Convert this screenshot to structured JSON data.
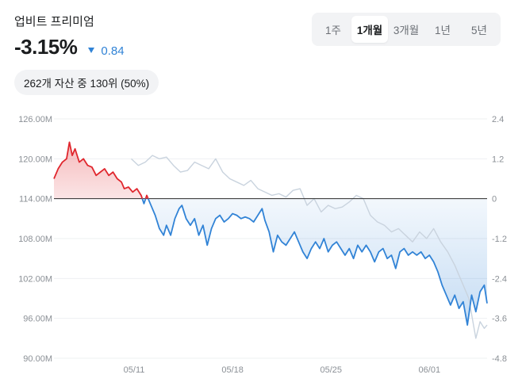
{
  "header": {
    "title": "업비트 프리미엄",
    "return_value": "-3.15%",
    "change_value": "0.84",
    "change_direction": "down",
    "rank_text": "262개 자산 중 130위 (50%)"
  },
  "period_tabs": [
    {
      "label": "1주",
      "active": false
    },
    {
      "label": "1개월",
      "active": true
    },
    {
      "label": "3개월",
      "active": false
    },
    {
      "label": "1년",
      "active": false
    },
    {
      "label": "5년",
      "active": false
    }
  ],
  "colors": {
    "up": "#e0262d",
    "down": "#3183d6",
    "benchmark": "#c9d3de",
    "baseline": "#2b2b2b",
    "grid": "#eef0f2"
  },
  "chart_data": {
    "type": "line",
    "left_axis_ticks": [
      "126.00M",
      "120.00M",
      "114.00M",
      "108.00M",
      "102.00M",
      "96.00M",
      "90.00M"
    ],
    "left_axis_values": [
      126,
      120,
      114,
      108,
      102,
      96,
      90
    ],
    "right_axis_ticks": [
      "2.4",
      "1.2",
      "0",
      "-1.2",
      "-2.4",
      "-3.6",
      "-4.8"
    ],
    "x_ticks": [
      "05/11",
      "05/18",
      "05/25",
      "06/01"
    ],
    "x_tick_days": [
      5.7,
      12.7,
      19.7,
      26.7
    ],
    "x_range_days": [
      0,
      30.8
    ],
    "ylim_left": [
      90,
      126
    ],
    "ylim_right": [
      -4.8,
      2.4
    ],
    "baseline_value": 0,
    "series": [
      {
        "values": [
          [
            0,
            0.6
          ],
          [
            0.3,
            0.9
          ],
          [
            0.6,
            1.1
          ],
          [
            0.9,
            1.2
          ],
          [
            1.1,
            1.7
          ],
          [
            1.3,
            1.3
          ],
          [
            1.5,
            1.5
          ],
          [
            1.8,
            1.1
          ],
          [
            2.1,
            1.2
          ],
          [
            2.4,
            1.0
          ],
          [
            2.7,
            0.95
          ],
          [
            3.0,
            0.7
          ],
          [
            3.3,
            0.8
          ],
          [
            3.6,
            0.9
          ],
          [
            3.9,
            0.7
          ],
          [
            4.2,
            0.8
          ],
          [
            4.5,
            0.6
          ],
          [
            4.8,
            0.5
          ],
          [
            5.0,
            0.3
          ],
          [
            5.3,
            0.35
          ],
          [
            5.6,
            0.2
          ],
          [
            5.9,
            0.3
          ],
          [
            6.2,
            0.1
          ],
          [
            6.4,
            -0.15
          ],
          [
            6.6,
            0.1
          ],
          [
            6.9,
            -0.2
          ],
          [
            7.2,
            -0.5
          ],
          [
            7.5,
            -0.9
          ],
          [
            7.8,
            -1.1
          ],
          [
            8.0,
            -0.8
          ],
          [
            8.3,
            -1.1
          ],
          [
            8.6,
            -0.6
          ],
          [
            8.9,
            -0.3
          ],
          [
            9.1,
            -0.2
          ],
          [
            9.4,
            -0.6
          ],
          [
            9.7,
            -0.8
          ],
          [
            10.0,
            -0.6
          ],
          [
            10.3,
            -1.1
          ],
          [
            10.6,
            -0.8
          ],
          [
            10.9,
            -1.4
          ],
          [
            11.2,
            -0.9
          ],
          [
            11.5,
            -0.6
          ],
          [
            11.8,
            -0.5
          ],
          [
            12.1,
            -0.7
          ],
          [
            12.4,
            -0.6
          ],
          [
            12.7,
            -0.45
          ],
          [
            13.0,
            -0.5
          ],
          [
            13.3,
            -0.6
          ],
          [
            13.6,
            -0.55
          ],
          [
            13.9,
            -0.6
          ],
          [
            14.2,
            -0.7
          ],
          [
            14.5,
            -0.5
          ],
          [
            14.8,
            -0.3
          ],
          [
            15.0,
            -0.65
          ],
          [
            15.3,
            -1.0
          ],
          [
            15.6,
            -1.6
          ],
          [
            15.9,
            -1.1
          ],
          [
            16.2,
            -1.3
          ],
          [
            16.5,
            -1.4
          ],
          [
            16.8,
            -1.2
          ],
          [
            17.1,
            -1.0
          ],
          [
            17.4,
            -1.3
          ],
          [
            17.7,
            -1.6
          ],
          [
            18.0,
            -1.8
          ],
          [
            18.3,
            -1.5
          ],
          [
            18.6,
            -1.3
          ],
          [
            18.9,
            -1.5
          ],
          [
            19.2,
            -1.2
          ],
          [
            19.5,
            -1.6
          ],
          [
            19.8,
            -1.4
          ],
          [
            20.1,
            -1.3
          ],
          [
            20.4,
            -1.5
          ],
          [
            20.7,
            -1.7
          ],
          [
            21.0,
            -1.5
          ],
          [
            21.3,
            -1.8
          ],
          [
            21.6,
            -1.4
          ],
          [
            21.9,
            -1.6
          ],
          [
            22.2,
            -1.4
          ],
          [
            22.5,
            -1.6
          ],
          [
            22.8,
            -1.9
          ],
          [
            23.1,
            -1.6
          ],
          [
            23.4,
            -1.5
          ],
          [
            23.7,
            -1.8
          ],
          [
            24.0,
            -1.7
          ],
          [
            24.3,
            -2.1
          ],
          [
            24.6,
            -1.6
          ],
          [
            24.9,
            -1.5
          ],
          [
            25.2,
            -1.7
          ],
          [
            25.5,
            -1.6
          ],
          [
            25.8,
            -1.7
          ],
          [
            26.1,
            -1.6
          ],
          [
            26.4,
            -1.8
          ],
          [
            26.7,
            -1.7
          ],
          [
            27.0,
            -1.9
          ],
          [
            27.3,
            -2.2
          ],
          [
            27.6,
            -2.6
          ],
          [
            27.9,
            -2.9
          ],
          [
            28.2,
            -3.2
          ],
          [
            28.5,
            -2.9
          ],
          [
            28.8,
            -3.3
          ],
          [
            29.1,
            -3.1
          ],
          [
            29.4,
            -3.8
          ],
          [
            29.7,
            -2.9
          ],
          [
            30.0,
            -3.4
          ],
          [
            30.3,
            -2.8
          ],
          [
            30.6,
            -2.6
          ],
          [
            30.8,
            -3.15
          ]
        ]
      },
      {
        "values": [
          [
            5.5,
            1.2
          ],
          [
            6.0,
            1.0
          ],
          [
            6.5,
            1.1
          ],
          [
            7.0,
            1.3
          ],
          [
            7.5,
            1.2
          ],
          [
            8.0,
            1.25
          ],
          [
            8.5,
            1.0
          ],
          [
            9.0,
            0.8
          ],
          [
            9.5,
            0.85
          ],
          [
            10.0,
            1.1
          ],
          [
            10.5,
            1.0
          ],
          [
            11.0,
            0.9
          ],
          [
            11.5,
            1.2
          ],
          [
            12.0,
            0.8
          ],
          [
            12.5,
            0.6
          ],
          [
            13.0,
            0.5
          ],
          [
            13.5,
            0.4
          ],
          [
            14.0,
            0.55
          ],
          [
            14.5,
            0.3
          ],
          [
            15.0,
            0.2
          ],
          [
            15.5,
            0.1
          ],
          [
            16.0,
            0.15
          ],
          [
            16.5,
            0.05
          ],
          [
            17.0,
            0.25
          ],
          [
            17.5,
            0.3
          ],
          [
            18.0,
            -0.2
          ],
          [
            18.5,
            0.0
          ],
          [
            19.0,
            -0.4
          ],
          [
            19.5,
            -0.2
          ],
          [
            20.0,
            -0.3
          ],
          [
            20.5,
            -0.25
          ],
          [
            21.0,
            -0.1
          ],
          [
            21.5,
            0.1
          ],
          [
            22.0,
            0.0
          ],
          [
            22.5,
            -0.5
          ],
          [
            23.0,
            -0.7
          ],
          [
            23.5,
            -0.8
          ],
          [
            24.0,
            -1.0
          ],
          [
            24.5,
            -0.9
          ],
          [
            25.0,
            -1.1
          ],
          [
            25.5,
            -1.3
          ],
          [
            26.0,
            -1.0
          ],
          [
            26.5,
            -1.2
          ],
          [
            27.0,
            -0.9
          ],
          [
            27.5,
            -1.3
          ],
          [
            28.0,
            -1.6
          ],
          [
            28.5,
            -2.0
          ],
          [
            29.0,
            -2.5
          ],
          [
            29.5,
            -3.0
          ],
          [
            30.0,
            -4.2
          ],
          [
            30.3,
            -3.7
          ],
          [
            30.6,
            -3.9
          ],
          [
            30.8,
            -3.8
          ]
        ]
      }
    ]
  }
}
